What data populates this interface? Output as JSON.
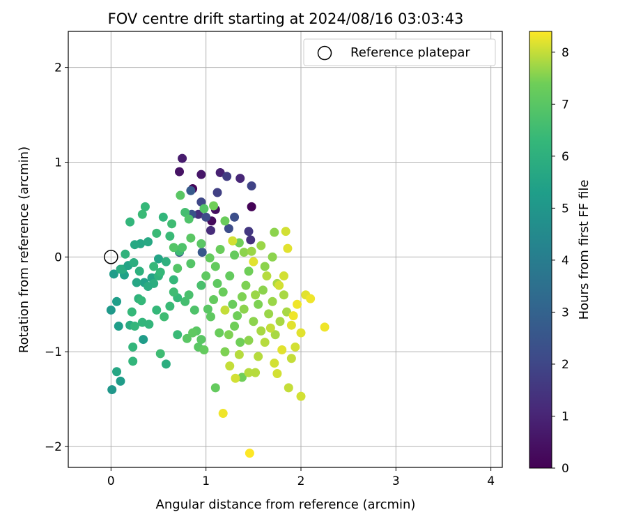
{
  "chart_data": {
    "type": "scatter",
    "title": "FOV centre drift starting at 2024/08/16 03:03:43",
    "xlabel": "Angular distance from reference (arcmin)",
    "ylabel": "Rotation from reference (arcmin)",
    "xlim": [
      -0.45,
      4.12
    ],
    "ylim": [
      -2.22,
      2.38
    ],
    "xticks": [
      0,
      1,
      2,
      3,
      4
    ],
    "yticks": [
      -2,
      -1,
      0,
      1,
      2
    ],
    "xtick_labels": [
      "0",
      "1",
      "2",
      "3",
      "4"
    ],
    "ytick_labels": [
      "−2",
      "−1",
      "0",
      "1",
      "2"
    ],
    "grid": true,
    "legend": {
      "position": "top-right",
      "entries": [
        "Reference platepar"
      ]
    },
    "reference_point": {
      "x": 0,
      "y": 0,
      "label": "Reference platepar"
    },
    "colorbar": {
      "label": "Hours from first FF file",
      "colormap": "viridis",
      "range": [
        0,
        8.4
      ],
      "ticks": [
        0,
        1,
        2,
        3,
        4,
        5,
        6,
        7,
        8
      ],
      "tick_labels": [
        "0",
        "1",
        "2",
        "3",
        "4",
        "5",
        "6",
        "7",
        "8"
      ]
    },
    "series": [
      {
        "values_description": "points as [x, y, hours]",
        "points": [
          [
            1.48,
            0.53,
            0.05
          ],
          [
            0.86,
            0.72,
            0.15
          ],
          [
            1.06,
            0.38,
            0.25
          ],
          [
            1.1,
            0.5,
            0.35
          ],
          [
            0.72,
            0.9,
            0.5
          ],
          [
            0.95,
            0.87,
            0.6
          ],
          [
            0.75,
            1.04,
            0.75
          ],
          [
            1.15,
            0.89,
            0.9
          ],
          [
            1.36,
            0.83,
            1.05
          ],
          [
            1.05,
            0.28,
            1.2
          ],
          [
            0.92,
            0.45,
            1.3
          ],
          [
            1.47,
            0.18,
            1.4
          ],
          [
            1.45,
            0.27,
            1.55
          ],
          [
            1.22,
            0.85,
            1.7
          ],
          [
            1.12,
            0.68,
            1.8
          ],
          [
            1.48,
            0.75,
            1.9
          ],
          [
            0.95,
            0.58,
            2.0
          ],
          [
            1.0,
            0.42,
            2.1
          ],
          [
            1.24,
            0.3,
            2.2
          ],
          [
            1.3,
            0.42,
            2.3
          ],
          [
            0.85,
            0.45,
            2.4
          ],
          [
            0.72,
            0.05,
            2.5
          ],
          [
            0.96,
            0.05,
            2.6
          ],
          [
            0.84,
            0.7,
            2.7
          ],
          [
            0.01,
            -1.4,
            5.0
          ],
          [
            0.0,
            -0.56,
            5.1
          ],
          [
            0.1,
            -1.31,
            5.2
          ],
          [
            0.06,
            -0.47,
            5.3
          ],
          [
            0.03,
            -0.18,
            5.2
          ],
          [
            0.08,
            -0.73,
            5.3
          ],
          [
            0.14,
            -0.19,
            5.4
          ],
          [
            0.34,
            -0.87,
            5.2
          ],
          [
            0.35,
            -0.27,
            5.4
          ],
          [
            0.5,
            -0.02,
            5.5
          ],
          [
            0.31,
            0.14,
            5.6
          ],
          [
            0.39,
            0.16,
            5.7
          ],
          [
            0.43,
            -0.22,
            5.5
          ],
          [
            0.27,
            -0.27,
            5.6
          ],
          [
            0.2,
            -0.72,
            5.8
          ],
          [
            0.06,
            -1.21,
            5.6
          ],
          [
            0.12,
            -0.13,
            5.9
          ],
          [
            0.18,
            -0.09,
            5.5
          ],
          [
            0.25,
            0.13,
            5.7
          ],
          [
            0.1,
            -0.13,
            5.8
          ],
          [
            0.24,
            -0.06,
            5.9
          ],
          [
            0.3,
            -0.15,
            6.0
          ],
          [
            0.45,
            -0.28,
            5.9
          ],
          [
            0.5,
            -0.2,
            6.1
          ],
          [
            0.58,
            -0.05,
            6.0
          ],
          [
            0.15,
            0.03,
            6.1
          ],
          [
            0.2,
            0.37,
            6.2
          ],
          [
            0.29,
            -0.44,
            6.1
          ],
          [
            0.39,
            -0.31,
            5.8
          ],
          [
            0.58,
            -1.13,
            5.9
          ],
          [
            0.23,
            -1.1,
            6.2
          ],
          [
            0.23,
            -0.95,
            6.2
          ],
          [
            0.25,
            -0.73,
            6.2
          ],
          [
            0.22,
            -0.58,
            6.3
          ],
          [
            0.33,
            -0.69,
            6.2
          ],
          [
            0.4,
            -0.71,
            6.2
          ],
          [
            0.48,
            -0.56,
            6.3
          ],
          [
            0.32,
            -0.46,
            6.3
          ],
          [
            0.52,
            -0.16,
            6.3
          ],
          [
            0.45,
            -0.1,
            6.3
          ],
          [
            0.36,
            0.53,
            6.3
          ],
          [
            0.33,
            0.45,
            6.4
          ],
          [
            0.48,
            0.25,
            6.4
          ],
          [
            0.55,
            0.42,
            6.2
          ],
          [
            0.62,
            0.22,
            6.4
          ],
          [
            0.64,
            0.35,
            6.5
          ],
          [
            0.72,
            0.06,
            6.5
          ],
          [
            0.66,
            -0.24,
            6.3
          ],
          [
            0.7,
            -0.43,
            6.3
          ],
          [
            0.7,
            -0.82,
            6.4
          ],
          [
            0.52,
            -1.02,
            6.5
          ],
          [
            0.56,
            -0.63,
            6.5
          ],
          [
            0.62,
            -0.52,
            6.4
          ],
          [
            0.66,
            -0.37,
            6.5
          ],
          [
            0.78,
            -0.47,
            6.6
          ],
          [
            0.82,
            -0.4,
            6.7
          ],
          [
            0.88,
            -0.56,
            6.8
          ],
          [
            0.95,
            -0.3,
            6.7
          ],
          [
            0.78,
            0.47,
            6.6
          ],
          [
            0.73,
            0.65,
            7.0
          ],
          [
            0.82,
            0.4,
            6.8
          ],
          [
            0.66,
            0.1,
            6.9
          ],
          [
            0.84,
            -0.07,
            6.9
          ],
          [
            0.98,
            0.51,
            6.9
          ],
          [
            0.95,
            0.14,
            7.0
          ],
          [
            1.0,
            -0.2,
            7.1
          ],
          [
            0.9,
            -0.78,
            7.0
          ],
          [
            0.92,
            -0.95,
            7.0
          ],
          [
            0.95,
            -0.87,
            7.0
          ],
          [
            1.05,
            -0.63,
            7.1
          ],
          [
            1.08,
            -0.45,
            7.2
          ],
          [
            1.1,
            -0.1,
            7.2
          ],
          [
            1.04,
            -0.01,
            7.2
          ],
          [
            1.15,
            0.08,
            7.3
          ],
          [
            1.2,
            0.38,
            7.3
          ],
          [
            1.18,
            -0.37,
            7.3
          ],
          [
            1.25,
            -0.2,
            7.2
          ],
          [
            1.28,
            -0.5,
            7.3
          ],
          [
            1.14,
            -0.8,
            7.3
          ],
          [
            1.1,
            -1.38,
            7.2
          ],
          [
            1.2,
            -1.0,
            7.5
          ],
          [
            1.24,
            -0.82,
            7.5
          ],
          [
            1.3,
            -0.73,
            7.4
          ],
          [
            1.36,
            -0.9,
            7.4
          ],
          [
            1.33,
            -0.62,
            7.4
          ],
          [
            1.38,
            -0.42,
            7.5
          ],
          [
            1.42,
            -0.3,
            7.5
          ],
          [
            1.45,
            -0.15,
            7.4
          ],
          [
            1.35,
            0.15,
            7.4
          ],
          [
            1.4,
            0.05,
            7.6
          ],
          [
            1.38,
            -1.27,
            7.4
          ],
          [
            1.45,
            -0.88,
            7.6
          ],
          [
            1.5,
            -0.68,
            7.6
          ],
          [
            1.55,
            -0.5,
            7.5
          ],
          [
            1.6,
            -0.35,
            7.6
          ],
          [
            1.62,
            -0.1,
            7.6
          ],
          [
            1.7,
            0.0,
            7.6
          ],
          [
            1.72,
            0.26,
            7.6
          ],
          [
            1.58,
            0.12,
            7.7
          ],
          [
            1.48,
            0.06,
            7.7
          ],
          [
            1.66,
            -0.6,
            7.7
          ],
          [
            1.7,
            -0.47,
            7.7
          ],
          [
            1.75,
            -0.28,
            7.8
          ],
          [
            1.73,
            -0.82,
            7.8
          ],
          [
            1.78,
            -0.68,
            7.8
          ],
          [
            1.85,
            -0.58,
            7.8
          ],
          [
            1.82,
            -0.4,
            7.8
          ],
          [
            1.62,
            -0.9,
            7.9
          ],
          [
            1.58,
            -0.78,
            7.8
          ],
          [
            1.52,
            -1.22,
            7.9
          ],
          [
            1.45,
            -1.22,
            7.9
          ],
          [
            1.55,
            -1.05,
            7.9
          ],
          [
            1.35,
            -1.03,
            7.9
          ],
          [
            1.25,
            -1.15,
            8.0
          ],
          [
            1.31,
            -1.28,
            8.1
          ],
          [
            1.9,
            -1.07,
            8.0
          ],
          [
            1.87,
            -1.38,
            8.0
          ],
          [
            2.0,
            -1.47,
            8.1
          ],
          [
            1.75,
            -1.23,
            8.1
          ],
          [
            1.72,
            -1.12,
            8.1
          ],
          [
            1.94,
            -0.95,
            8.1
          ],
          [
            2.0,
            -0.8,
            8.2
          ],
          [
            2.05,
            -0.4,
            8.2
          ],
          [
            1.96,
            -0.5,
            8.3
          ],
          [
            1.9,
            -0.72,
            8.2
          ],
          [
            1.82,
            -0.2,
            8.1
          ],
          [
            1.77,
            -0.3,
            8.1
          ],
          [
            2.25,
            -0.74,
            8.3
          ],
          [
            2.1,
            -0.44,
            8.3
          ],
          [
            1.84,
            0.27,
            8.1
          ],
          [
            1.86,
            0.09,
            8.2
          ],
          [
            1.18,
            -1.65,
            8.3
          ],
          [
            1.46,
            -2.07,
            8.4
          ],
          [
            1.5,
            -0.05,
            8.2
          ],
          [
            1.28,
            0.17,
            8.1
          ],
          [
            1.2,
            -0.56,
            8.0
          ],
          [
            0.8,
            -0.86,
            7.0
          ],
          [
            0.86,
            -0.8,
            7.1
          ],
          [
            0.98,
            -0.98,
            7.2
          ],
          [
            1.02,
            -0.55,
            7.0
          ],
          [
            1.12,
            -0.28,
            7.1
          ],
          [
            0.84,
            0.2,
            7.0
          ],
          [
            0.7,
            -0.12,
            6.9
          ],
          [
            0.75,
            0.1,
            6.8
          ],
          [
            1.08,
            0.54,
            7.4
          ],
          [
            1.3,
            0.02,
            7.2
          ],
          [
            1.4,
            -0.55,
            7.6
          ],
          [
            1.52,
            -0.4,
            7.7
          ],
          [
            1.64,
            -0.2,
            7.9
          ],
          [
            1.68,
            -0.75,
            8.0
          ],
          [
            1.8,
            -0.98,
            8.2
          ],
          [
            1.92,
            -0.62,
            8.3
          ]
        ]
      }
    ]
  }
}
